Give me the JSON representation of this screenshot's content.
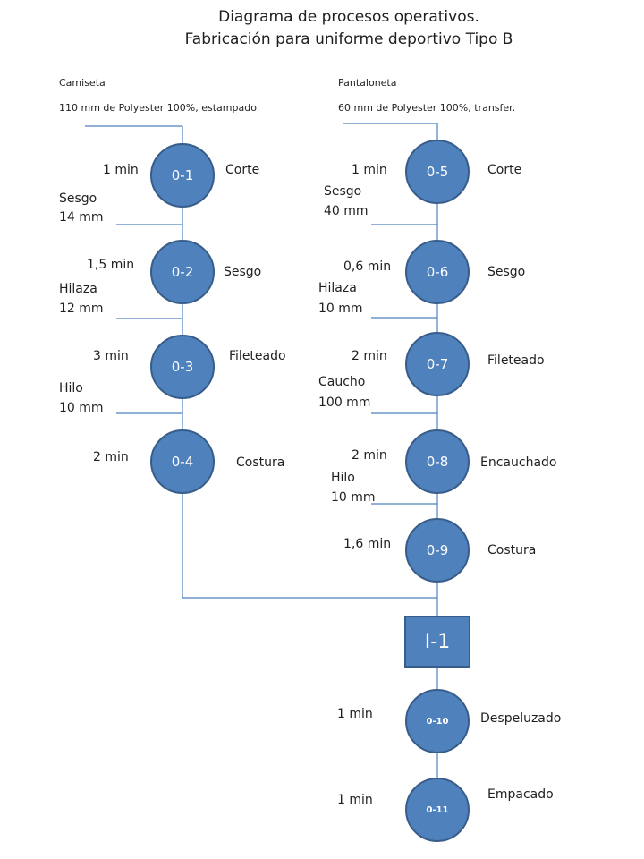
{
  "title": {
    "line1": "Diagrama de procesos operativos.",
    "line2": "Fabricación para uniforme deportivo Tipo B"
  },
  "left_header": {
    "name": "Camiseta",
    "material": "110 mm  de Polyester 100%, estampado."
  },
  "right_header": {
    "name": "Pantaloneta",
    "material": "60 mm de Polyester 100%, transfer."
  },
  "nodes": {
    "o1": {
      "id": "0-1",
      "time": "1 min",
      "activity": "Corte"
    },
    "o2": {
      "id": "0-2",
      "time": "1,5 min",
      "activity": "Sesgo"
    },
    "o3": {
      "id": "0-3",
      "time": "3 min",
      "activity": "Fileteado"
    },
    "o4": {
      "id": "0-4",
      "time": "2 min",
      "activity": "Costura"
    },
    "o5": {
      "id": "0-5",
      "time": "1 min",
      "activity": "Corte"
    },
    "o6": {
      "id": "0-6",
      "time": "0,6 min",
      "activity": "Sesgo"
    },
    "o7": {
      "id": "0-7",
      "time": "2 min",
      "activity": "Fileteado"
    },
    "o8": {
      "id": "0-8",
      "time": "2 min",
      "activity": "Encauchado"
    },
    "o9": {
      "id": "0-9",
      "time": "1,6 min",
      "activity": "Costura"
    },
    "o10": {
      "id": "0-10",
      "time": "1 min",
      "activity": "Despeluzado"
    },
    "o11": {
      "id": "0-11",
      "time": "1 min",
      "activity": "Empacado"
    }
  },
  "inspection": {
    "id": "I-1"
  },
  "inputs": {
    "sesgo_left": {
      "name": "Sesgo",
      "qty": "14 mm"
    },
    "hilaza_left": {
      "name": "Hilaza",
      "qty": "12 mm"
    },
    "hilo_left": {
      "name": "Hilo",
      "qty": "10 mm"
    },
    "sesgo_right": {
      "name": "Sesgo",
      "qty": "40 mm"
    },
    "hilaza_right": {
      "name": "Hilaza",
      "qty": "10 mm"
    },
    "caucho_right": {
      "name": "Caucho",
      "qty": "100 mm"
    },
    "hilo_right": {
      "name": "Hilo",
      "qty": "10 mm"
    }
  }
}
